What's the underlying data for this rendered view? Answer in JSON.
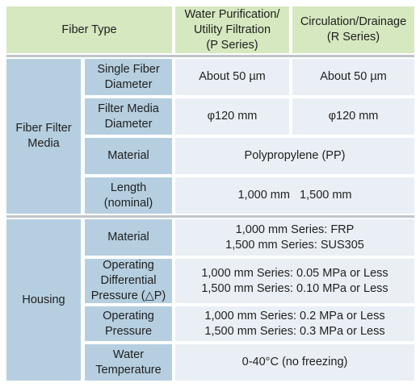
{
  "header": {
    "fiber_type": "Fiber Type",
    "p_series": "Water Purification/\nUtility Filtration\n(P Series)",
    "r_series": "Circulation/Drainage\n(R Series)"
  },
  "fiber_filter_media": {
    "group_label": "Fiber Filter\nMedia",
    "rows": [
      {
        "label": "Single Fiber\nDiameter",
        "p": "About 50 µm",
        "r": "About 50 µm"
      },
      {
        "label": "Filter Media\nDiameter",
        "p": "φ120 mm",
        "r": "φ120 mm"
      },
      {
        "label": "Material",
        "value": "Polypropylene (PP)"
      },
      {
        "label": "Length\n(nominal)",
        "value": "1,000 mm   1,500 mm"
      }
    ]
  },
  "housing": {
    "group_label": "Housing",
    "rows": [
      {
        "label": "Material",
        "value": "1,000 mm Series: FRP\n1,500 mm Series: SUS305"
      },
      {
        "label": "Operating\nDifferential\nPressure (△P)",
        "value": "1,000 mm Series: 0.05 MPa or Less\n1,500 mm Series: 0.10 MPa or Less"
      },
      {
        "label": "Operating\nPressure",
        "value": "1,000 mm Series: 0.2 MPa or Less\n1,500 mm Series: 0.3 MPa or Less"
      },
      {
        "label": "Water\nTemperature",
        "value": "0-40°C (no freezing)"
      }
    ]
  }
}
